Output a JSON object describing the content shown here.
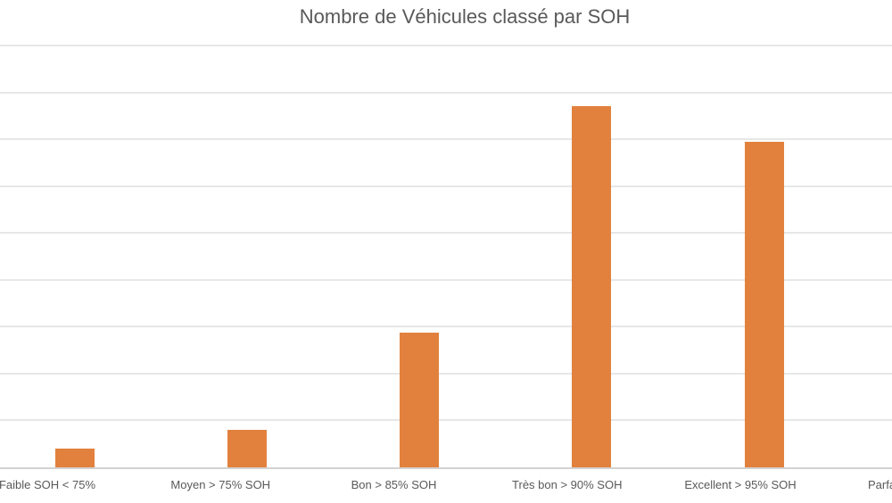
{
  "chart_data": {
    "type": "bar",
    "title": "Nombre de Véhicules classé par SOH",
    "categories": [
      "Faible SOH < 75%",
      "Moyen > 75% SOH",
      "Bon > 85% SOH",
      "Très bon > 90% SOH",
      "Excellent > 95% SOH",
      "Parfa"
    ],
    "last_category_truncated_at_right_edge": true,
    "series": [
      {
        "values": [
          0.4,
          0.8,
          2.88,
          7.7,
          6.95,
          null
        ]
      }
    ],
    "value_unit": "y-gridline intervals (y-axis tick labels are cropped out of view on the left; chart shows 9 intervals between baseline and top gridline)",
    "ylim": [
      0,
      9
    ],
    "xlabel": "",
    "ylabel": "",
    "grid": true,
    "legend": false,
    "colors": {
      "bar": "#E2813D",
      "gridline": "#E7E7E7",
      "axis_line": "#D2D2D2",
      "title_text": "#595959",
      "label_text": "#595959",
      "background": "#FFFFFF"
    }
  }
}
